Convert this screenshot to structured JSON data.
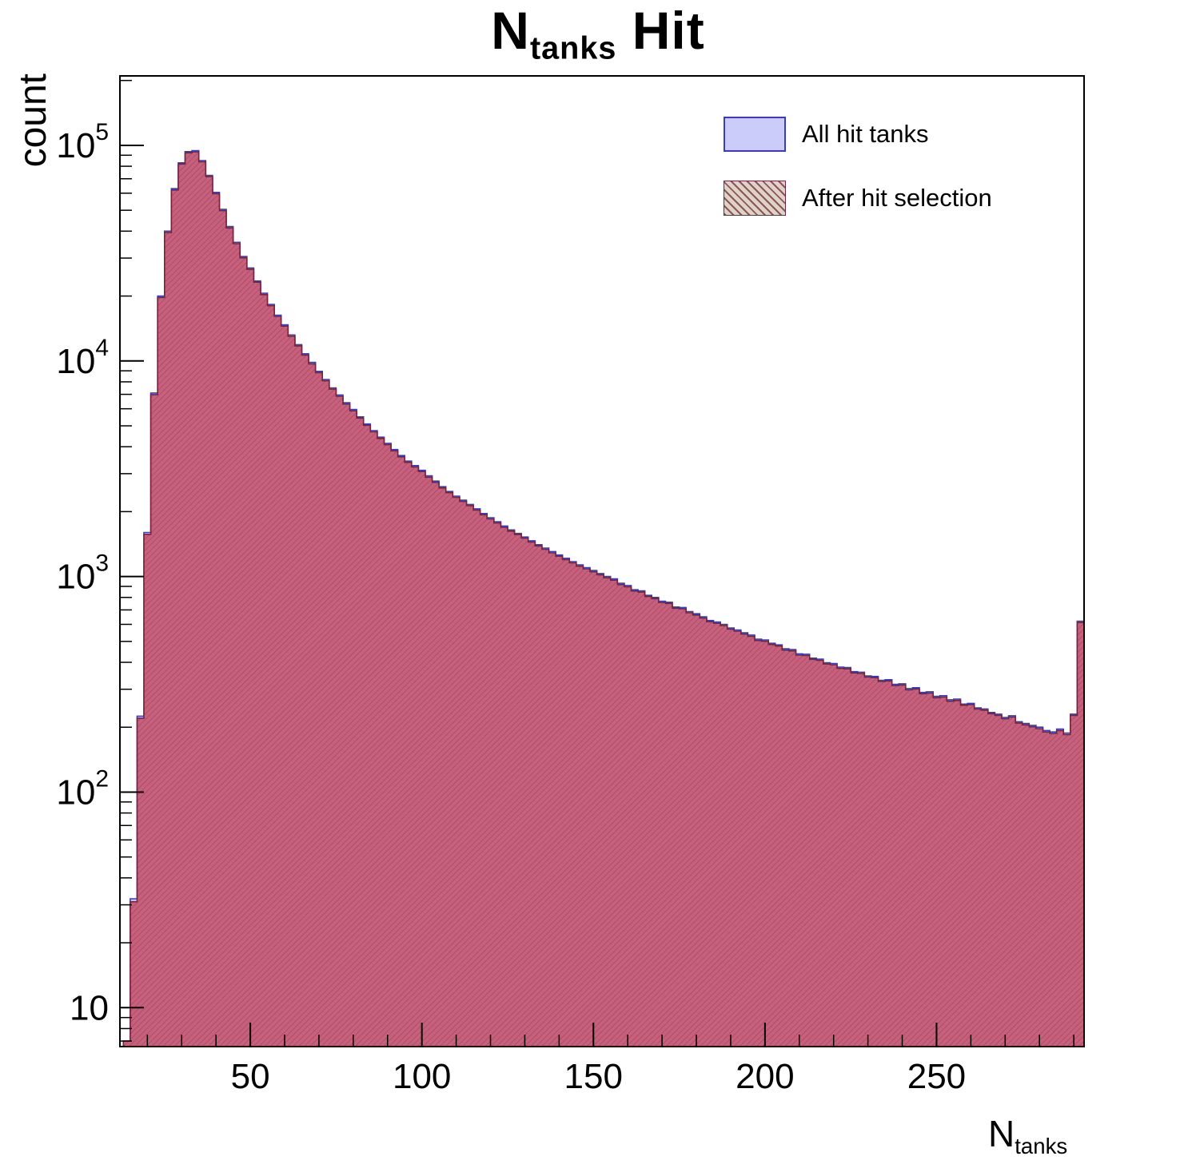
{
  "chart_data": {
    "type": "bar",
    "title": {
      "main": "N",
      "sub": "tanks",
      "rest": " Hit"
    },
    "xlabel": {
      "main": "N",
      "sub": "tanks"
    },
    "ylabel": "count",
    "x_scale": "linear",
    "y_scale": "log",
    "xlim": [
      12,
      293
    ],
    "ylim": [
      6.6,
      210000
    ],
    "grid": false,
    "bin_start": 13,
    "bin_width": 2,
    "x_ticks_major": [
      50,
      100,
      150,
      200,
      250
    ],
    "x_tick_minor_step": 10,
    "y_ticks": [
      {
        "value": 10,
        "base": "10",
        "exp": ""
      },
      {
        "value": 100,
        "base": "10",
        "exp": "2"
      },
      {
        "value": 1000,
        "base": "10",
        "exp": "3"
      },
      {
        "value": 10000,
        "base": "10",
        "exp": "4"
      },
      {
        "value": 100000,
        "base": "10",
        "exp": "5"
      }
    ],
    "legend": {
      "position": "top-right"
    },
    "series": [
      {
        "name": "All hit tanks",
        "fill": "#ccccfa",
        "edge": "#3b3bbe",
        "style": "solid",
        "values": [
          7,
          32,
          225,
          1600,
          7100,
          20000,
          40000,
          63000,
          83000,
          93500,
          94500,
          85000,
          72500,
          60500,
          50500,
          42000,
          35500,
          30500,
          27000,
          23500,
          20600,
          18300,
          16300,
          14700,
          13200,
          11900,
          10800,
          9850,
          8950,
          8200,
          7500,
          6950,
          6400,
          5950,
          5500,
          5100,
          4750,
          4430,
          4150,
          3880,
          3640,
          3430,
          3270,
          3110,
          2930,
          2770,
          2610,
          2480,
          2360,
          2260,
          2160,
          2060,
          1960,
          1875,
          1795,
          1715,
          1645,
          1585,
          1525,
          1465,
          1405,
          1355,
          1305,
          1258,
          1215,
          1172,
          1132,
          1100,
          1066,
          1032,
          1000,
          975,
          930,
          908,
          868,
          858,
          818,
          800,
          768,
          760,
          722,
          718,
          688,
          672,
          650,
          625,
          615,
          600,
          577,
          565,
          548,
          535,
          512,
          508,
          490,
          482,
          462,
          458,
          438,
          436,
          418,
          414,
          398,
          395,
          380,
          378,
          362,
          360,
          346,
          344,
          330,
          332,
          316,
          318,
          302,
          305,
          290,
          292,
          278,
          280,
          268,
          270,
          256,
          258,
          246,
          243,
          234,
          230,
          222,
          226,
          212,
          208,
          204,
          200,
          193,
          190,
          196,
          188,
          230,
          620
        ]
      },
      {
        "name": "After hit selection",
        "fill": "#c75f7a",
        "edge": "#7a2238",
        "style": "hatched",
        "values": [
          7,
          31,
          220,
          1570,
          6980,
          19700,
          39400,
          62100,
          81900,
          92300,
          93300,
          83900,
          71600,
          59700,
          49800,
          41400,
          35000,
          30100,
          26600,
          23200,
          20300,
          18050,
          16100,
          14500,
          13000,
          11750,
          10650,
          9700,
          8830,
          8090,
          7400,
          6860,
          6310,
          5870,
          5430,
          5030,
          4690,
          4370,
          4090,
          3830,
          3590,
          3385,
          3225,
          3070,
          2890,
          2735,
          2575,
          2450,
          2330,
          2230,
          2132,
          2034,
          1935,
          1851,
          1772,
          1693,
          1624,
          1565,
          1506,
          1446,
          1387,
          1338,
          1288,
          1242,
          1199,
          1157,
          1117,
          1086,
          1052,
          1019,
          987,
          962,
          918,
          896,
          857,
          847,
          808,
          790,
          758,
          750,
          713,
          709,
          679,
          663,
          642,
          617,
          607,
          592,
          570,
          558,
          541,
          528,
          505,
          501,
          484,
          476,
          456,
          452,
          432,
          430,
          413,
          409,
          393,
          390,
          375,
          373,
          357,
          355,
          342,
          340,
          326,
          328,
          312,
          314,
          298,
          301,
          286,
          288,
          274,
          276,
          264,
          266,
          253,
          255,
          243,
          240,
          231,
          227,
          219,
          223,
          209,
          205,
          201,
          197,
          190,
          187,
          193,
          185,
          227,
          612
        ]
      }
    ]
  }
}
